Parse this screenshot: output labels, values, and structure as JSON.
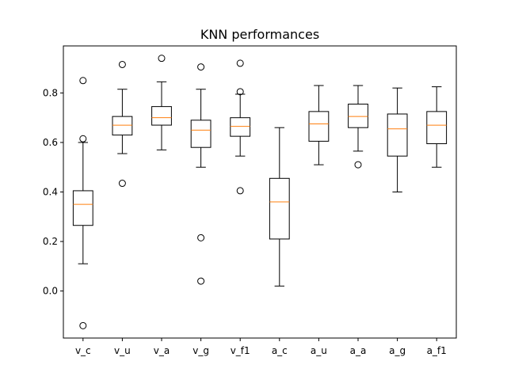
{
  "chart_data": {
    "type": "box",
    "title": "KNN performances",
    "xlabel": "",
    "ylabel": "",
    "ylim": [
      -0.19,
      0.99
    ],
    "yticks": [
      0.0,
      0.2,
      0.4,
      0.6,
      0.8
    ],
    "ytick_labels": [
      "0.0",
      "0.2",
      "0.4",
      "0.6",
      "0.8"
    ],
    "grid": false,
    "box_color": "#000000",
    "median_color": "#ff7f0e",
    "categories": [
      "v_c",
      "v_u",
      "v_a",
      "v_g",
      "v_f1",
      "a_c",
      "a_u",
      "a_a",
      "a_g",
      "a_f1"
    ],
    "boxes": [
      {
        "label": "v_c",
        "whisker_low": 0.11,
        "q1": 0.265,
        "median": 0.35,
        "q3": 0.405,
        "whisker_high": 0.6,
        "fliers": [
          0.85,
          0.615,
          -0.14
        ]
      },
      {
        "label": "v_u",
        "whisker_low": 0.555,
        "q1": 0.63,
        "median": 0.67,
        "q3": 0.705,
        "whisker_high": 0.815,
        "fliers": [
          0.915,
          0.435
        ]
      },
      {
        "label": "v_a",
        "whisker_low": 0.57,
        "q1": 0.67,
        "median": 0.7,
        "q3": 0.745,
        "whisker_high": 0.845,
        "fliers": [
          0.94
        ]
      },
      {
        "label": "v_g",
        "whisker_low": 0.5,
        "q1": 0.58,
        "median": 0.65,
        "q3": 0.69,
        "whisker_high": 0.815,
        "fliers": [
          0.905,
          0.215,
          0.04
        ]
      },
      {
        "label": "v_f1",
        "whisker_low": 0.545,
        "q1": 0.625,
        "median": 0.665,
        "q3": 0.7,
        "whisker_high": 0.795,
        "fliers": [
          0.92,
          0.805,
          0.405
        ]
      },
      {
        "label": "a_c",
        "whisker_low": 0.02,
        "q1": 0.21,
        "median": 0.36,
        "q3": 0.455,
        "whisker_high": 0.66,
        "fliers": []
      },
      {
        "label": "a_u",
        "whisker_low": 0.51,
        "q1": 0.605,
        "median": 0.675,
        "q3": 0.725,
        "whisker_high": 0.83,
        "fliers": []
      },
      {
        "label": "a_a",
        "whisker_low": 0.565,
        "q1": 0.66,
        "median": 0.705,
        "q3": 0.755,
        "whisker_high": 0.83,
        "fliers": [
          0.51
        ]
      },
      {
        "label": "a_g",
        "whisker_low": 0.4,
        "q1": 0.545,
        "median": 0.655,
        "q3": 0.715,
        "whisker_high": 0.82,
        "fliers": []
      },
      {
        "label": "a_f1",
        "whisker_low": 0.5,
        "q1": 0.595,
        "median": 0.67,
        "q3": 0.725,
        "whisker_high": 0.825,
        "fliers": []
      }
    ]
  }
}
